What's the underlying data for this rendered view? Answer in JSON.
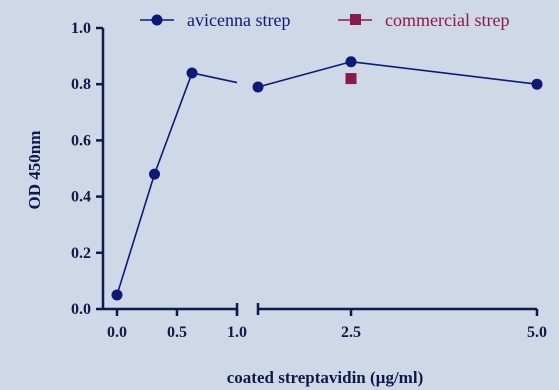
{
  "chart_data": {
    "type": "line",
    "title": "",
    "xlabel": "coated streptavidin  (µg/ml)",
    "ylabel": "OD 450nm",
    "xlim": [
      0,
      5
    ],
    "ylim": [
      0,
      1
    ],
    "x_axis_break": [
      1.0,
      1.25
    ],
    "x_ticks": [
      {
        "value": 0,
        "label": "0.0"
      },
      {
        "value": 0.5,
        "label": "0.5"
      },
      {
        "value": 1.0,
        "label": "1.0"
      },
      {
        "value": 2.5,
        "label": "2.5"
      },
      {
        "value": 5.0,
        "label": "5.0"
      }
    ],
    "y_ticks": [
      {
        "value": 0,
        "label": "0.0"
      },
      {
        "value": 0.2,
        "label": "0.2"
      },
      {
        "value": 0.4,
        "label": "0.4"
      },
      {
        "value": 0.6,
        "label": "0.6"
      },
      {
        "value": 0.8,
        "label": "0.8"
      },
      {
        "value": 1.0,
        "label": "1.0"
      }
    ],
    "legend_position": "top",
    "series": [
      {
        "name": "avicenna strep",
        "marker": "circle",
        "color": "#0e1a78",
        "connected": true,
        "points": [
          {
            "x": 0,
            "y": 0.05
          },
          {
            "x": 0.3125,
            "y": 0.48
          },
          {
            "x": 0.625,
            "y": 0.84
          },
          {
            "x": 1.25,
            "y": 0.79
          },
          {
            "x": 2.5,
            "y": 0.88
          },
          {
            "x": 5.0,
            "y": 0.8
          }
        ]
      },
      {
        "name": "commercial strep",
        "marker": "square",
        "color": "#8a1a4a",
        "connected": false,
        "points": [
          {
            "x": 2.5,
            "y": 0.82
          }
        ]
      }
    ]
  }
}
